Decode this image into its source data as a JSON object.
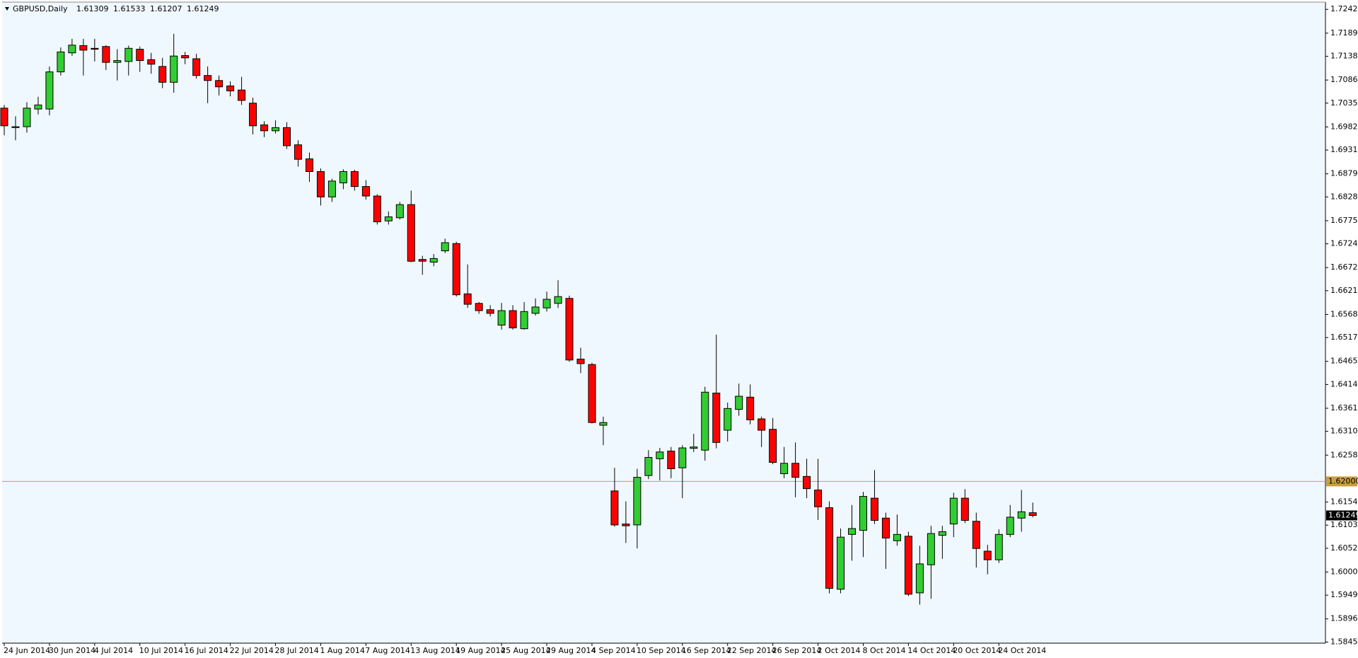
{
  "chart_data": {
    "type": "candlestick",
    "title": "GBPUSD,Daily",
    "up_color": "#32cd32",
    "down_color": "#ff0000",
    "categories": [
      "24 Jun 2014",
      null,
      null,
      null,
      "30 Jun 2014",
      null,
      null,
      null,
      "4 Jul 2014",
      null,
      null,
      null,
      "10 Jul 2014",
      null,
      null,
      null,
      "16 Jul 2014",
      null,
      null,
      null,
      "22 Jul 2014",
      null,
      null,
      null,
      "28 Jul 2014",
      null,
      null,
      null,
      "1 Aug 2014",
      null,
      null,
      null,
      "7 Aug 2014",
      null,
      null,
      null,
      "13 Aug 2014",
      null,
      null,
      null,
      "19 Aug 2014",
      null,
      null,
      null,
      "25 Aug 2014",
      null,
      null,
      null,
      "29 Aug 2014",
      null,
      null,
      null,
      "4 Sep 2014",
      null,
      null,
      null,
      "10 Sep 2014",
      null,
      null,
      null,
      "16 Sep 2014",
      null,
      null,
      null,
      "22 Sep 2014",
      null,
      null,
      null,
      "26 Sep 2014",
      null,
      null,
      null,
      "2 Oct 2014",
      null,
      null,
      null,
      "8 Oct 2014",
      null,
      null,
      null,
      "14 Oct 2014",
      null,
      null,
      null,
      "20 Oct 2014",
      null,
      null,
      null,
      "24 Oct 2014",
      null,
      null,
      null
    ],
    "open": [
      1.7024,
      1.6981,
      1.6983,
      1.7022,
      1.7022,
      1.7104,
      1.7146,
      1.7162,
      1.7156,
      1.716,
      1.7125,
      1.7127,
      1.7154,
      1.7131,
      1.7116,
      1.7081,
      1.714,
      1.7133,
      1.7096,
      1.7085,
      1.7073,
      1.7064,
      1.7035,
      1.6987,
      1.6974,
      1.6981,
      1.6943,
      1.6912,
      1.6884,
      1.6828,
      1.6859,
      1.6884,
      1.6851,
      1.683,
      1.6775,
      1.6782,
      1.6811,
      1.669,
      1.6684,
      1.6709,
      1.6725,
      1.6614,
      1.6593,
      1.6579,
      1.6545,
      1.6577,
      1.6537,
      1.6571,
      1.6583,
      1.6593,
      1.6604,
      1.647,
      1.6458,
      1.6324,
      1.6179,
      1.6106,
      1.6104,
      1.6213,
      1.625,
      1.6267,
      1.623,
      1.6273,
      1.6269,
      1.6395,
      1.6313,
      1.6359,
      1.6386,
      1.6338,
      1.6315,
      1.6217,
      1.624,
      1.6211,
      1.6181,
      1.6142,
      1.5962,
      1.6083,
      1.6092,
      1.6163,
      1.6119,
      1.6069,
      1.6079,
      1.5954,
      1.6016,
      1.6081,
      1.6106,
      1.6163,
      1.6112,
      1.6046,
      1.6027,
      1.6083,
      1.6119,
      1.61309
    ],
    "high": [
      1.7031,
      1.7006,
      1.7037,
      1.7049,
      1.7116,
      1.7158,
      1.7177,
      1.7177,
      1.7177,
      1.7163,
      1.7154,
      1.7162,
      1.716,
      1.7146,
      1.7135,
      1.7188,
      1.7148,
      1.7144,
      1.7116,
      1.7096,
      1.7083,
      1.7093,
      1.7047,
      1.6995,
      1.6997,
      1.6993,
      1.6953,
      1.6926,
      1.6891,
      1.6868,
      1.6889,
      1.6888,
      1.6865,
      1.6834,
      1.6796,
      1.6817,
      1.6842,
      1.6698,
      1.6702,
      1.6736,
      1.6729,
      1.6679,
      1.6596,
      1.6589,
      1.6594,
      1.6589,
      1.6596,
      1.6604,
      1.6619,
      1.6644,
      1.661,
      1.6495,
      1.6462,
      1.6343,
      1.623,
      1.6156,
      1.6228,
      1.6269,
      1.6274,
      1.6276,
      1.628,
      1.6305,
      1.6409,
      1.6524,
      1.6374,
      1.6416,
      1.6414,
      1.6343,
      1.634,
      1.6276,
      1.6286,
      1.625,
      1.625,
      1.6156,
      1.6096,
      1.6148,
      1.6177,
      1.6225,
      1.6131,
      1.6127,
      1.6089,
      1.6058,
      1.6102,
      1.6102,
      1.6175,
      1.6183,
      1.6131,
      1.606,
      1.6094,
      1.6148,
      1.6181,
      1.61533
    ],
    "low": [
      1.6964,
      1.6953,
      1.697,
      1.701,
      1.7008,
      1.7096,
      1.7139,
      1.7096,
      1.7127,
      1.7108,
      1.7085,
      1.7096,
      1.7104,
      1.71,
      1.7068,
      1.7058,
      1.7121,
      1.7089,
      1.7035,
      1.7052,
      1.705,
      1.7031,
      1.6966,
      1.696,
      1.6968,
      1.6934,
      1.6895,
      1.6861,
      1.6809,
      1.6817,
      1.6845,
      1.6842,
      1.6822,
      1.6767,
      1.6767,
      1.6778,
      1.6684,
      1.6656,
      1.6675,
      1.6704,
      1.6608,
      1.6583,
      1.657,
      1.6564,
      1.6535,
      1.6535,
      1.6535,
      1.6566,
      1.6575,
      1.6583,
      1.6464,
      1.6439,
      1.6328,
      1.628,
      1.61,
      1.6064,
      1.6052,
      1.6205,
      1.6202,
      1.6207,
      1.6163,
      1.6265,
      1.6246,
      1.6273,
      1.6288,
      1.6345,
      1.6326,
      1.6276,
      1.6238,
      1.6207,
      1.6165,
      1.6163,
      1.6115,
      1.5953,
      1.5953,
      1.6025,
      1.6033,
      1.6106,
      1.6007,
      1.6058,
      1.5947,
      1.5928,
      1.5941,
      1.6029,
      1.6077,
      1.6108,
      1.601,
      1.5995,
      1.602,
      1.6077,
      1.6089,
      1.61207
    ],
    "close": [
      1.6985,
      1.6983,
      1.7024,
      1.7031,
      1.7104,
      1.7148,
      1.7163,
      1.7152,
      1.7154,
      1.7125,
      1.7129,
      1.7156,
      1.7129,
      1.7121,
      1.7081,
      1.7139,
      1.7135,
      1.7096,
      1.7085,
      1.7071,
      1.7062,
      1.7041,
      1.6985,
      1.6974,
      1.6981,
      1.6941,
      1.6911,
      1.6884,
      1.6828,
      1.6863,
      1.6884,
      1.6851,
      1.683,
      1.6773,
      1.6784,
      1.6811,
      1.6686,
      1.6686,
      1.6692,
      1.6727,
      1.6612,
      1.6591,
      1.6577,
      1.6571,
      1.6577,
      1.6539,
      1.6575,
      1.6585,
      1.6602,
      1.6608,
      1.6468,
      1.646,
      1.633,
      1.633,
      1.6104,
      1.6102,
      1.6209,
      1.6253,
      1.6265,
      1.6228,
      1.6274,
      1.6276,
      1.6397,
      1.6286,
      1.6361,
      1.6388,
      1.6336,
      1.6313,
      1.6242,
      1.624,
      1.6209,
      1.6184,
      1.6144,
      1.5964,
      1.6077,
      1.6096,
      1.6167,
      1.6114,
      1.6075,
      1.6083,
      1.5951,
      1.6018,
      1.6085,
      1.6089,
      1.6163,
      1.6114,
      1.6052,
      1.6027,
      1.6083,
      1.6121,
      1.6133,
      1.61249
    ],
    "ylim": [
      1.5843,
      1.7258
    ],
    "yticks": [
      {
        "value": 1.7242,
        "label": "1.72420"
      },
      1.71895,
      1.71385,
      1.7086,
      {
        "value": 1.7035,
        "label": "1.70350"
      },
      1.69825,
      1.69315,
      1.6879,
      {
        "value": 1.6828,
        "label": "1.68280"
      },
      1.67755,
      1.67245,
      {
        "value": 1.6672,
        "label": "1.66720"
      },
      {
        "value": 1.6621,
        "label": "1.66210"
      },
      1.65685,
      1.65175,
      {
        "value": 1.6465,
        "label": "1.64650"
      },
      {
        "value": 1.6414,
        "label": "1.64140"
      },
      1.63615,
      1.63105,
      {
        "value": 1.6258,
        "label": "1.62580"
      },
      1.61545,
      1.61035,
      1.60525,
      {
        "value": 1.6,
        "label": "1.60000"
      },
      {
        "value": 1.5949,
        "label": "1.59490"
      },
      1.58965,
      1.58455
    ],
    "hline": {
      "value": 1.62,
      "label": "1.62000",
      "color": "#c8a03c"
    }
  }
}
